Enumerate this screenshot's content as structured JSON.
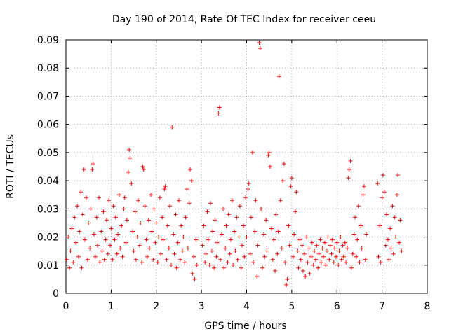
{
  "chart_data": {
    "type": "scatter",
    "title": "Day 190 of 2014, Rate Of TEC Index for receiver ceeu",
    "xlabel": "GPS time / hours",
    "ylabel": "ROTI / TECUs",
    "xlim": [
      0,
      8
    ],
    "ylim": [
      0,
      0.09
    ],
    "grid": true,
    "marker": "+",
    "color": "#ff0000",
    "xticks": [
      "0",
      "1",
      "2",
      "3",
      "4",
      "5",
      "6",
      "7",
      "8"
    ],
    "yticks": [
      "0",
      "0.01",
      "0.02",
      "0.03",
      "0.04",
      "0.05",
      "0.06",
      "0.07",
      "0.08",
      "0.09"
    ],
    "series": [
      {
        "name": "ROTI",
        "points": [
          [
            0.02,
            0.012
          ],
          [
            0.05,
            0.02
          ],
          [
            0.08,
            0.009
          ],
          [
            0.1,
            0.015
          ],
          [
            0.13,
            0.023
          ],
          [
            0.16,
            0.011
          ],
          [
            0.19,
            0.027
          ],
          [
            0.22,
            0.018
          ],
          [
            0.25,
            0.031
          ],
          [
            0.28,
            0.013
          ],
          [
            0.3,
            0.022
          ],
          [
            0.33,
            0.036
          ],
          [
            0.35,
            0.009
          ],
          [
            0.37,
            0.028
          ],
          [
            0.4,
            0.044
          ],
          [
            0.42,
            0.019
          ],
          [
            0.45,
            0.034
          ],
          [
            0.48,
            0.012
          ],
          [
            0.5,
            0.025
          ],
          [
            0.53,
            0.016
          ],
          [
            0.55,
            0.03
          ],
          [
            0.58,
            0.044
          ],
          [
            0.6,
            0.046
          ],
          [
            0.62,
            0.021
          ],
          [
            0.65,
            0.013
          ],
          [
            0.68,
            0.027
          ],
          [
            0.7,
            0.017
          ],
          [
            0.73,
            0.034
          ],
          [
            0.75,
            0.011
          ],
          [
            0.78,
            0.022
          ],
          [
            0.8,
            0.015
          ],
          [
            0.83,
            0.029
          ],
          [
            0.85,
            0.012
          ],
          [
            0.88,
            0.019
          ],
          [
            0.9,
            0.026
          ],
          [
            0.93,
            0.014
          ],
          [
            0.95,
            0.033
          ],
          [
            0.98,
            0.017
          ],
          [
            1.0,
            0.023
          ],
          [
            1.03,
            0.012
          ],
          [
            1.05,
            0.031
          ],
          [
            1.08,
            0.019
          ],
          [
            1.1,
            0.027
          ],
          [
            1.13,
            0.014
          ],
          [
            1.15,
            0.021
          ],
          [
            1.18,
            0.035
          ],
          [
            1.2,
            0.016
          ],
          [
            1.23,
            0.024
          ],
          [
            1.25,
            0.013
          ],
          [
            1.28,
            0.03
          ],
          [
            1.3,
            0.034
          ],
          [
            1.33,
            0.018
          ],
          [
            1.35,
            0.026
          ],
          [
            1.38,
            0.043
          ],
          [
            1.4,
            0.051
          ],
          [
            1.42,
            0.048
          ],
          [
            1.45,
            0.039
          ],
          [
            1.48,
            0.022
          ],
          [
            1.5,
            0.015
          ],
          [
            1.53,
            0.029
          ],
          [
            1.55,
            0.012
          ],
          [
            1.58,
            0.02
          ],
          [
            1.6,
            0.033
          ],
          [
            1.63,
            0.017
          ],
          [
            1.65,
            0.025
          ],
          [
            1.68,
            0.011
          ],
          [
            1.7,
            0.045
          ],
          [
            1.72,
            0.044
          ],
          [
            1.75,
            0.031
          ],
          [
            1.78,
            0.019
          ],
          [
            1.8,
            0.013
          ],
          [
            1.83,
            0.026
          ],
          [
            1.85,
            0.016
          ],
          [
            1.88,
            0.035
          ],
          [
            1.9,
            0.022
          ],
          [
            1.93,
            0.012
          ],
          [
            1.95,
            0.03
          ],
          [
            1.98,
            0.018
          ],
          [
            2.0,
            0.025
          ],
          [
            2.03,
            0.011
          ],
          [
            2.05,
            0.02
          ],
          [
            2.08,
            0.034
          ],
          [
            2.1,
            0.014
          ],
          [
            2.13,
            0.027
          ],
          [
            2.15,
            0.019
          ],
          [
            2.18,
            0.037
          ],
          [
            2.2,
            0.038
          ],
          [
            2.23,
            0.012
          ],
          [
            2.25,
            0.024
          ],
          [
            2.28,
            0.016
          ],
          [
            2.3,
            0.031
          ],
          [
            2.33,
            0.01
          ],
          [
            2.35,
            0.059
          ],
          [
            2.38,
            0.021
          ],
          [
            2.4,
            0.014
          ],
          [
            2.43,
            0.028
          ],
          [
            2.45,
            0.009
          ],
          [
            2.48,
            0.018
          ],
          [
            2.5,
            0.033
          ],
          [
            2.53,
            0.012
          ],
          [
            2.55,
            0.024
          ],
          [
            2.58,
            0.015
          ],
          [
            2.6,
            0.02
          ],
          [
            2.63,
            0.011
          ],
          [
            2.65,
            0.027
          ],
          [
            2.68,
            0.037
          ],
          [
            2.7,
            0.016
          ],
          [
            2.73,
            0.032
          ],
          [
            2.75,
            0.044
          ],
          [
            2.78,
            0.04
          ],
          [
            2.8,
            0.007
          ],
          [
            2.83,
            0.013
          ],
          [
            2.85,
            0.005
          ],
          [
            2.88,
            0.019
          ],
          [
            2.9,
            0.01
          ],
          [
            3.02,
            0.017
          ],
          [
            3.05,
            0.024
          ],
          [
            3.08,
            0.011
          ],
          [
            3.1,
            0.014
          ],
          [
            3.13,
            0.029
          ],
          [
            3.15,
            0.019
          ],
          [
            3.18,
            0.01
          ],
          [
            3.2,
            0.032
          ],
          [
            3.23,
            0.015
          ],
          [
            3.25,
            0.022
          ],
          [
            3.28,
            0.009
          ],
          [
            3.3,
            0.026
          ],
          [
            3.33,
            0.013
          ],
          [
            3.35,
            0.018
          ],
          [
            3.38,
            0.064
          ],
          [
            3.4,
            0.066
          ],
          [
            3.42,
            0.012
          ],
          [
            3.45,
            0.021
          ],
          [
            3.48,
            0.03
          ],
          [
            3.5,
            0.009
          ],
          [
            3.53,
            0.016
          ],
          [
            3.55,
            0.024
          ],
          [
            3.58,
            0.011
          ],
          [
            3.6,
            0.028
          ],
          [
            3.63,
            0.014
          ],
          [
            3.65,
            0.019
          ],
          [
            3.68,
            0.033
          ],
          [
            3.7,
            0.01
          ],
          [
            3.73,
            0.022
          ],
          [
            3.75,
            0.015
          ],
          [
            3.78,
            0.027
          ],
          [
            3.8,
            0.012
          ],
          [
            3.83,
            0.02
          ],
          [
            3.85,
            0.031
          ],
          [
            3.88,
            0.009
          ],
          [
            3.9,
            0.017
          ],
          [
            3.93,
            0.024
          ],
          [
            3.95,
            0.013
          ],
          [
            3.98,
            0.034
          ],
          [
            4.0,
            0.02
          ],
          [
            4.03,
            0.037
          ],
          [
            4.05,
            0.039
          ],
          [
            4.08,
            0.014
          ],
          [
            4.1,
            0.027
          ],
          [
            4.13,
            0.05
          ],
          [
            4.15,
            0.011
          ],
          [
            4.18,
            0.022
          ],
          [
            4.2,
            0.033
          ],
          [
            4.23,
            0.006
          ],
          [
            4.25,
            0.017
          ],
          [
            4.28,
            0.089
          ],
          [
            4.3,
            0.087
          ],
          [
            4.32,
            0.03
          ],
          [
            4.35,
            0.009
          ],
          [
            4.38,
            0.021
          ],
          [
            4.4,
            0.013
          ],
          [
            4.43,
            0.026
          ],
          [
            4.45,
            0.015
          ],
          [
            4.48,
            0.049
          ],
          [
            4.5,
            0.05
          ],
          [
            4.52,
            0.045
          ],
          [
            4.55,
            0.023
          ],
          [
            4.58,
            0.012
          ],
          [
            4.6,
            0.019
          ],
          [
            4.63,
            0.008
          ],
          [
            4.65,
            0.028
          ],
          [
            4.68,
            0.014
          ],
          [
            4.7,
            0.022
          ],
          [
            4.72,
            0.077
          ],
          [
            4.75,
            0.033
          ],
          [
            4.78,
            0.016
          ],
          [
            4.8,
            0.04
          ],
          [
            4.83,
            0.046
          ],
          [
            4.85,
            0.011
          ],
          [
            4.88,
            0.003
          ],
          [
            4.9,
            0.005
          ],
          [
            4.93,
            0.024
          ],
          [
            4.95,
            0.017
          ],
          [
            4.98,
            0.038
          ],
          [
            5.0,
            0.041
          ],
          [
            5.03,
            0.013
          ],
          [
            5.05,
            0.021
          ],
          [
            5.08,
            0.029
          ],
          [
            5.1,
            0.036
          ],
          [
            5.13,
            0.015
          ],
          [
            5.15,
            0.009
          ],
          [
            5.18,
            0.019
          ],
          [
            5.2,
            0.012
          ],
          [
            5.23,
            0.017
          ],
          [
            5.25,
            0.008
          ],
          [
            5.28,
            0.014
          ],
          [
            5.3,
            0.006
          ],
          [
            5.33,
            0.02
          ],
          [
            5.35,
            0.011
          ],
          [
            5.38,
            0.016
          ],
          [
            5.4,
            0.007
          ],
          [
            5.43,
            0.013
          ],
          [
            5.45,
            0.018
          ],
          [
            5.48,
            0.01
          ],
          [
            5.5,
            0.015
          ],
          [
            5.53,
            0.012
          ],
          [
            5.55,
            0.017
          ],
          [
            5.58,
            0.009
          ],
          [
            5.6,
            0.014
          ],
          [
            5.63,
            0.019
          ],
          [
            5.65,
            0.011
          ],
          [
            5.68,
            0.016
          ],
          [
            5.7,
            0.013
          ],
          [
            5.73,
            0.018
          ],
          [
            5.75,
            0.01
          ],
          [
            5.78,
            0.015
          ],
          [
            5.8,
            0.02
          ],
          [
            5.83,
            0.012
          ],
          [
            5.85,
            0.017
          ],
          [
            5.88,
            0.014
          ],
          [
            5.9,
            0.019
          ],
          [
            5.93,
            0.011
          ],
          [
            5.95,
            0.016
          ],
          [
            5.98,
            0.013
          ],
          [
            6.0,
            0.018
          ],
          [
            6.03,
            0.01
          ],
          [
            6.05,
            0.015
          ],
          [
            6.08,
            0.02
          ],
          [
            6.1,
            0.012
          ],
          [
            6.13,
            0.017
          ],
          [
            6.15,
            0.013
          ],
          [
            6.18,
            0.018
          ],
          [
            6.2,
            0.011
          ],
          [
            6.23,
            0.016
          ],
          [
            6.25,
            0.041
          ],
          [
            6.27,
            0.044
          ],
          [
            6.3,
            0.047
          ],
          [
            6.32,
            0.009
          ],
          [
            6.35,
            0.014
          ],
          [
            6.38,
            0.021
          ],
          [
            6.4,
            0.027
          ],
          [
            6.43,
            0.013
          ],
          [
            6.45,
            0.019
          ],
          [
            6.48,
            0.031
          ],
          [
            6.5,
            0.011
          ],
          [
            6.53,
            0.024
          ],
          [
            6.55,
            0.016
          ],
          [
            6.58,
            0.035
          ],
          [
            6.6,
            0.038
          ],
          [
            6.63,
            0.012
          ],
          [
            6.65,
            0.021
          ],
          [
            6.9,
            0.039
          ],
          [
            6.92,
            0.013
          ],
          [
            6.95,
            0.024
          ],
          [
            6.97,
            0.011
          ],
          [
            7.0,
            0.034
          ],
          [
            7.02,
            0.042
          ],
          [
            7.05,
            0.036
          ],
          [
            7.08,
            0.017
          ],
          [
            7.1,
            0.028
          ],
          [
            7.13,
            0.019
          ],
          [
            7.15,
            0.012
          ],
          [
            7.18,
            0.023
          ],
          [
            7.2,
            0.016
          ],
          [
            7.23,
            0.031
          ],
          [
            7.25,
            0.014
          ],
          [
            7.28,
            0.027
          ],
          [
            7.3,
            0.02
          ],
          [
            7.33,
            0.035
          ],
          [
            7.35,
            0.042
          ],
          [
            7.38,
            0.018
          ],
          [
            7.4,
            0.026
          ],
          [
            7.43,
            0.015
          ]
        ]
      }
    ]
  }
}
